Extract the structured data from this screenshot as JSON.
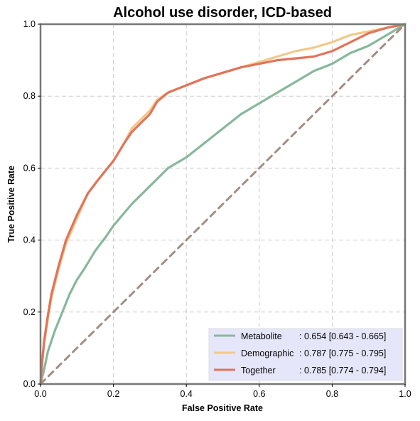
{
  "chart_data": {
    "type": "line",
    "title": "Alcohol use disorder, ICD-based",
    "xlabel": "False Positive Rate",
    "ylabel": "True Positive Rate",
    "xlim": [
      0,
      1
    ],
    "ylim": [
      0,
      1
    ],
    "xticks": [
      "0.0",
      "0.2",
      "0.4",
      "0.6",
      "0.8",
      "1.0"
    ],
    "yticks": [
      "0.0",
      "0.2",
      "0.4",
      "0.6",
      "0.8",
      "1.0"
    ],
    "grid": true,
    "legend_position": "lower-right",
    "legend_bg": "#e6e6fa",
    "series": [
      {
        "name": "Metabolite",
        "score_label": ": 0.654 [0.643 - 0.665]",
        "color": "#86b89b",
        "x": [
          0.0,
          0.01,
          0.02,
          0.04,
          0.06,
          0.08,
          0.1,
          0.12,
          0.15,
          0.18,
          0.2,
          0.25,
          0.3,
          0.35,
          0.4,
          0.45,
          0.5,
          0.55,
          0.6,
          0.65,
          0.7,
          0.75,
          0.8,
          0.85,
          0.9,
          0.95,
          1.0
        ],
        "y": [
          0.0,
          0.04,
          0.09,
          0.15,
          0.2,
          0.25,
          0.29,
          0.32,
          0.37,
          0.41,
          0.44,
          0.5,
          0.55,
          0.6,
          0.63,
          0.67,
          0.71,
          0.75,
          0.78,
          0.81,
          0.84,
          0.87,
          0.89,
          0.92,
          0.94,
          0.97,
          1.0
        ]
      },
      {
        "name": "Demographic",
        "score_label": ": 0.787 [0.775 - 0.795]",
        "color": "#f1c98a",
        "x": [
          0.0,
          0.005,
          0.01,
          0.02,
          0.03,
          0.05,
          0.07,
          0.1,
          0.13,
          0.16,
          0.2,
          0.23,
          0.25,
          0.28,
          0.3,
          0.32,
          0.35,
          0.4,
          0.45,
          0.5,
          0.55,
          0.6,
          0.65,
          0.7,
          0.75,
          0.8,
          0.85,
          0.9,
          0.95,
          1.0
        ],
        "y": [
          0.0,
          0.06,
          0.11,
          0.18,
          0.24,
          0.32,
          0.39,
          0.46,
          0.53,
          0.57,
          0.62,
          0.67,
          0.71,
          0.74,
          0.76,
          0.79,
          0.81,
          0.83,
          0.85,
          0.865,
          0.88,
          0.895,
          0.91,
          0.925,
          0.935,
          0.95,
          0.97,
          0.98,
          0.99,
          1.0
        ]
      },
      {
        "name": "Together",
        "score_label": ": 0.785 [0.774 - 0.794]",
        "color": "#e2735a",
        "x": [
          0.0,
          0.005,
          0.01,
          0.02,
          0.03,
          0.05,
          0.07,
          0.1,
          0.13,
          0.16,
          0.2,
          0.23,
          0.25,
          0.28,
          0.3,
          0.32,
          0.35,
          0.4,
          0.45,
          0.5,
          0.55,
          0.6,
          0.65,
          0.7,
          0.75,
          0.8,
          0.85,
          0.9,
          0.95,
          1.0
        ],
        "y": [
          0.0,
          0.07,
          0.12,
          0.19,
          0.25,
          0.33,
          0.4,
          0.47,
          0.53,
          0.57,
          0.62,
          0.67,
          0.7,
          0.73,
          0.75,
          0.785,
          0.81,
          0.83,
          0.85,
          0.865,
          0.88,
          0.89,
          0.9,
          0.905,
          0.91,
          0.925,
          0.95,
          0.975,
          0.99,
          1.0
        ]
      },
      {
        "role": "chance-line",
        "color": "#a58d80",
        "x": [
          0,
          1
        ],
        "y": [
          0,
          1
        ]
      }
    ]
  }
}
